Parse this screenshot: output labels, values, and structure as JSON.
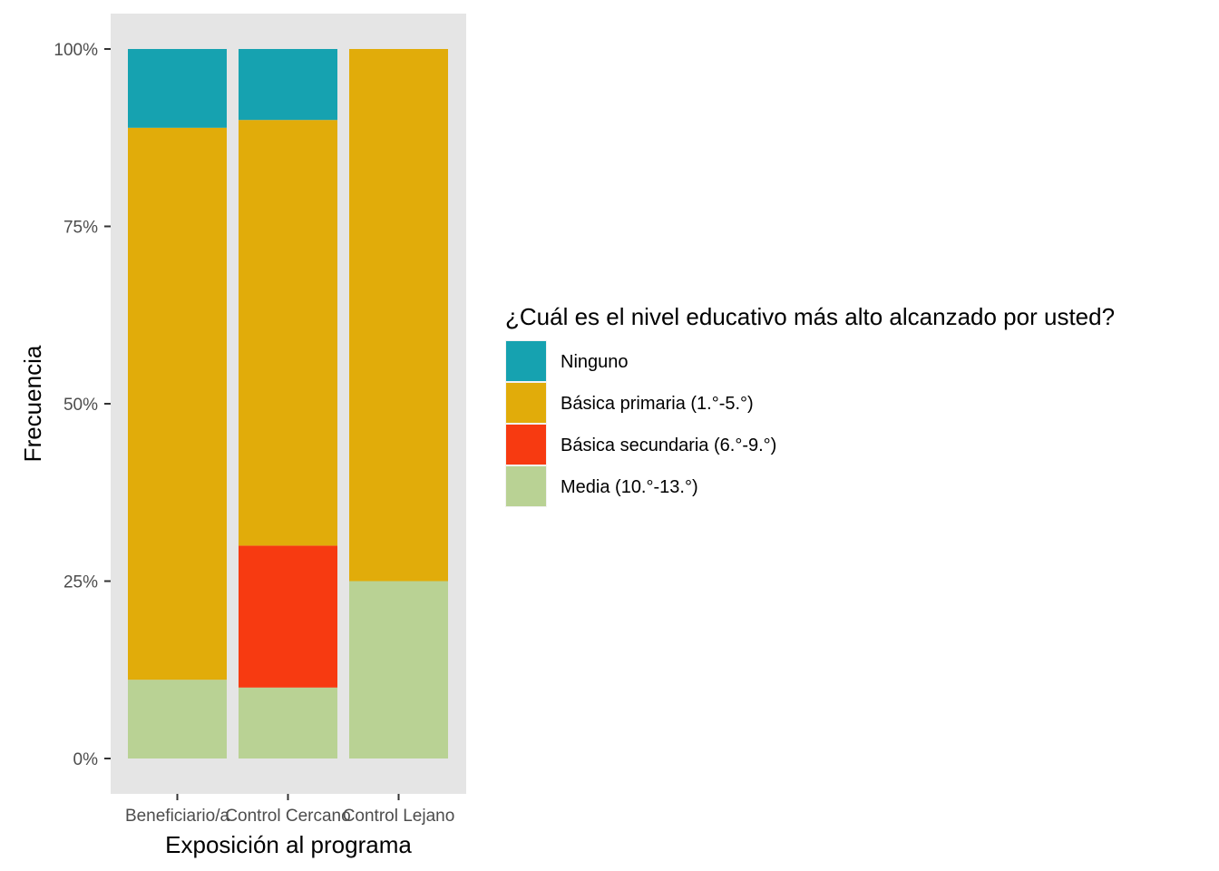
{
  "chart_data": {
    "type": "bar",
    "stacked": true,
    "percent": true,
    "xlabel": "Exposición al programa",
    "ylabel": "Frecuencia",
    "ylim": [
      0,
      1
    ],
    "yticks": [
      0,
      0.25,
      0.5,
      0.75,
      1
    ],
    "ytick_labels": [
      "0%",
      "25%",
      "50%",
      "75%",
      "100%"
    ],
    "categories": [
      "Beneficiario/a",
      "Control Cercano",
      "Control Lejano"
    ],
    "legend_title": "¿Cuál es el nivel educativo más alto alcanzado por usted?",
    "legend_position": "right",
    "grid": false,
    "series": [
      {
        "name": "Ninguno",
        "color": "#16A2B0",
        "values": [
          0.111,
          0.1,
          0.0
        ]
      },
      {
        "name": "Básica primaria (1.°-5.°)",
        "color": "#E1AC0A",
        "values": [
          0.778,
          0.6,
          0.75
        ]
      },
      {
        "name": "Básica secundaria (6.°-9.°)",
        "color": "#F73A11",
        "values": [
          0.0,
          0.2,
          0.0
        ]
      },
      {
        "name": "Media (10.°-13.°)",
        "color": "#B9D294",
        "values": [
          0.111,
          0.1,
          0.25
        ]
      }
    ]
  }
}
